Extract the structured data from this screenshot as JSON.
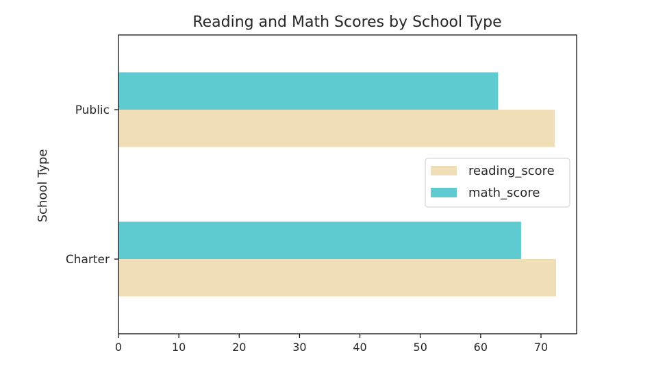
{
  "chart_data": {
    "type": "bar",
    "orientation": "horizontal",
    "title": "Reading and Math Scores by School Type",
    "xlabel": "",
    "ylabel": "School Type",
    "categories": [
      "Charter",
      "Public"
    ],
    "series": [
      {
        "name": "reading_score",
        "values": [
          72.5,
          72.3
        ],
        "color": "#f0deb6"
      },
      {
        "name": "math_score",
        "values": [
          66.7,
          62.9
        ],
        "color": "#5ecbd0"
      }
    ],
    "xlim": [
      0,
      75.9
    ],
    "xticks": [
      0,
      10,
      20,
      30,
      40,
      50,
      60,
      70
    ],
    "grid": false,
    "legend_position": "center-right"
  }
}
